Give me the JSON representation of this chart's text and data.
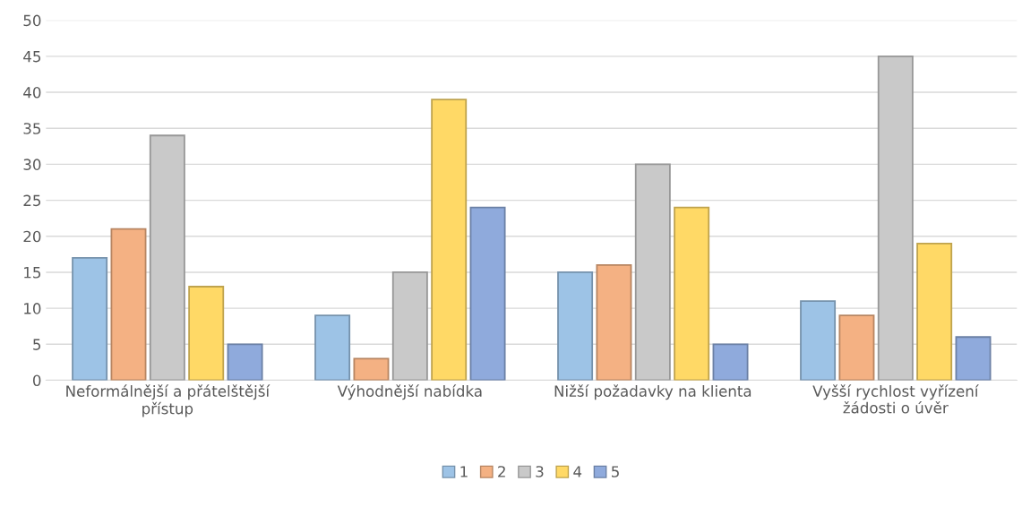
{
  "chart_data": {
    "type": "bar",
    "categories": [
      "Neformálnější a přátelštější\npřístup",
      "Výhodnější nabídka",
      "Nižší požadavky na klienta",
      "Vyšší rychlost vyřízení\nžádosti o úvěr"
    ],
    "series": [
      {
        "name": "1",
        "color": "#9dc3e6",
        "values": [
          17,
          9,
          15,
          11
        ]
      },
      {
        "name": "2",
        "color": "#f4b183",
        "values": [
          21,
          3,
          16,
          9
        ]
      },
      {
        "name": "3",
        "color": "#c9c9c9",
        "values": [
          34,
          15,
          30,
          45
        ]
      },
      {
        "name": "4",
        "color": "#ffd966",
        "values": [
          13,
          39,
          24,
          19
        ]
      },
      {
        "name": "5",
        "color": "#8faadc",
        "values": [
          5,
          24,
          5,
          6
        ]
      }
    ],
    "ylim": [
      0,
      50
    ],
    "yticks": [
      0,
      5,
      10,
      15,
      20,
      25,
      30,
      35,
      40,
      45,
      50
    ],
    "grid": "y",
    "legend": "bottom"
  }
}
